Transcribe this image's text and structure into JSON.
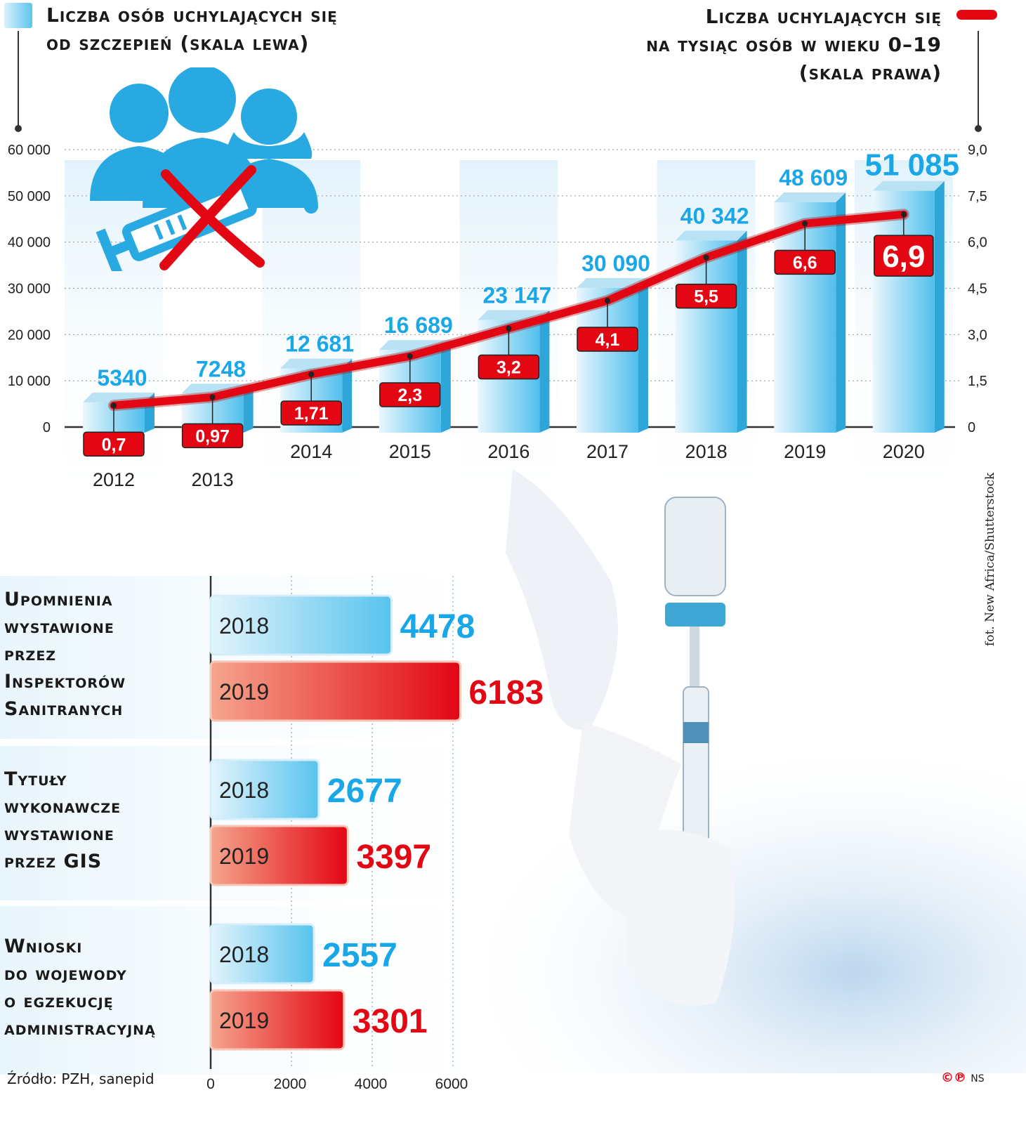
{
  "legend": {
    "left_line1": "Liczba osób uchylających się",
    "left_line2": "od szczepień (skala lewa)",
    "right_line1": "Liczba uchylających się",
    "right_line2": "na tysiąc osób w wieku 0–19",
    "right_line3": "(skala prawa)"
  },
  "photo_credit": "fot. New Africa/Shutterstock",
  "source": "Źródło: PZH, sanepid",
  "copyright": {
    "symbols": "©℗",
    "initials": "NS"
  },
  "colors": {
    "blue": "#1aa7e8",
    "blue_light": "#d9f0fb",
    "blue_bar": "#5cc4ee",
    "red": "#e30613",
    "red_light": "#f39a86",
    "label_text": "#ffffff",
    "axis": "#333333"
  },
  "icons": [
    "people-icon",
    "syringe-icon",
    "cross-mark-icon",
    "drop-icon"
  ],
  "chart_data": [
    {
      "type": "bar",
      "categories": [
        "2012",
        "2013",
        "2014",
        "2015",
        "2016",
        "2017",
        "2018",
        "2019",
        "2020"
      ],
      "series": [
        {
          "name": "Liczba osób uchylających się od szczepień (skala lewa)",
          "values": [
            5340,
            7248,
            12681,
            16689,
            23147,
            30090,
            40342,
            48609,
            51085
          ],
          "labels": [
            "5340",
            "7248",
            "12 681",
            "16 689",
            "23 147",
            "30 090",
            "40 342",
            "48 609",
            "51 085"
          ],
          "axis": "left"
        },
        {
          "name": "Liczba uchylających się na tysiąc osób w wieku 0–19 (skala prawa)",
          "type": "line",
          "values": [
            0.7,
            0.97,
            1.71,
            2.3,
            3.2,
            4.1,
            5.5,
            6.6,
            6.9
          ],
          "labels": [
            "0,7",
            "0,97",
            "1,71",
            "2,3",
            "3,2",
            "4,1",
            "5,5",
            "6,6",
            "6,9"
          ],
          "axis": "right"
        }
      ],
      "ylim_left": [
        0,
        60000
      ],
      "yticks_left": [
        "0",
        "10 000",
        "20 000",
        "30 000",
        "40 000",
        "50 000",
        "60 000"
      ],
      "ylim_right": [
        0,
        9
      ],
      "yticks_right": [
        "0",
        "1,5",
        "3,0",
        "4,5",
        "6,0",
        "7,5",
        "9,0"
      ],
      "grid": true
    },
    {
      "type": "bar",
      "orientation": "horizontal",
      "groups": [
        {
          "label_lines": [
            "Upomnienia",
            "wystawione",
            "przez",
            "Inspektorów",
            "Sanitranych"
          ],
          "bars": [
            {
              "year": "2018",
              "value": 4478,
              "label": "4478"
            },
            {
              "year": "2019",
              "value": 6183,
              "label": "6183"
            }
          ]
        },
        {
          "label_lines": [
            "Tytuły",
            "wykonawcze",
            "wystawione",
            "przez GIS"
          ],
          "bars": [
            {
              "year": "2018",
              "value": 2677,
              "label": "2677"
            },
            {
              "year": "2019",
              "value": 3397,
              "label": "3397"
            }
          ]
        },
        {
          "label_lines": [
            "Wnioski",
            "do wojewody",
            "o egzekucję",
            "administracyjną"
          ],
          "bars": [
            {
              "year": "2018",
              "value": 2557,
              "label": "2557"
            },
            {
              "year": "2019",
              "value": 3301,
              "label": "3301"
            }
          ]
        }
      ],
      "xlim": [
        0,
        6000
      ],
      "xticks": [
        "0",
        "2000",
        "4000",
        "6000"
      ],
      "grid": true
    }
  ]
}
